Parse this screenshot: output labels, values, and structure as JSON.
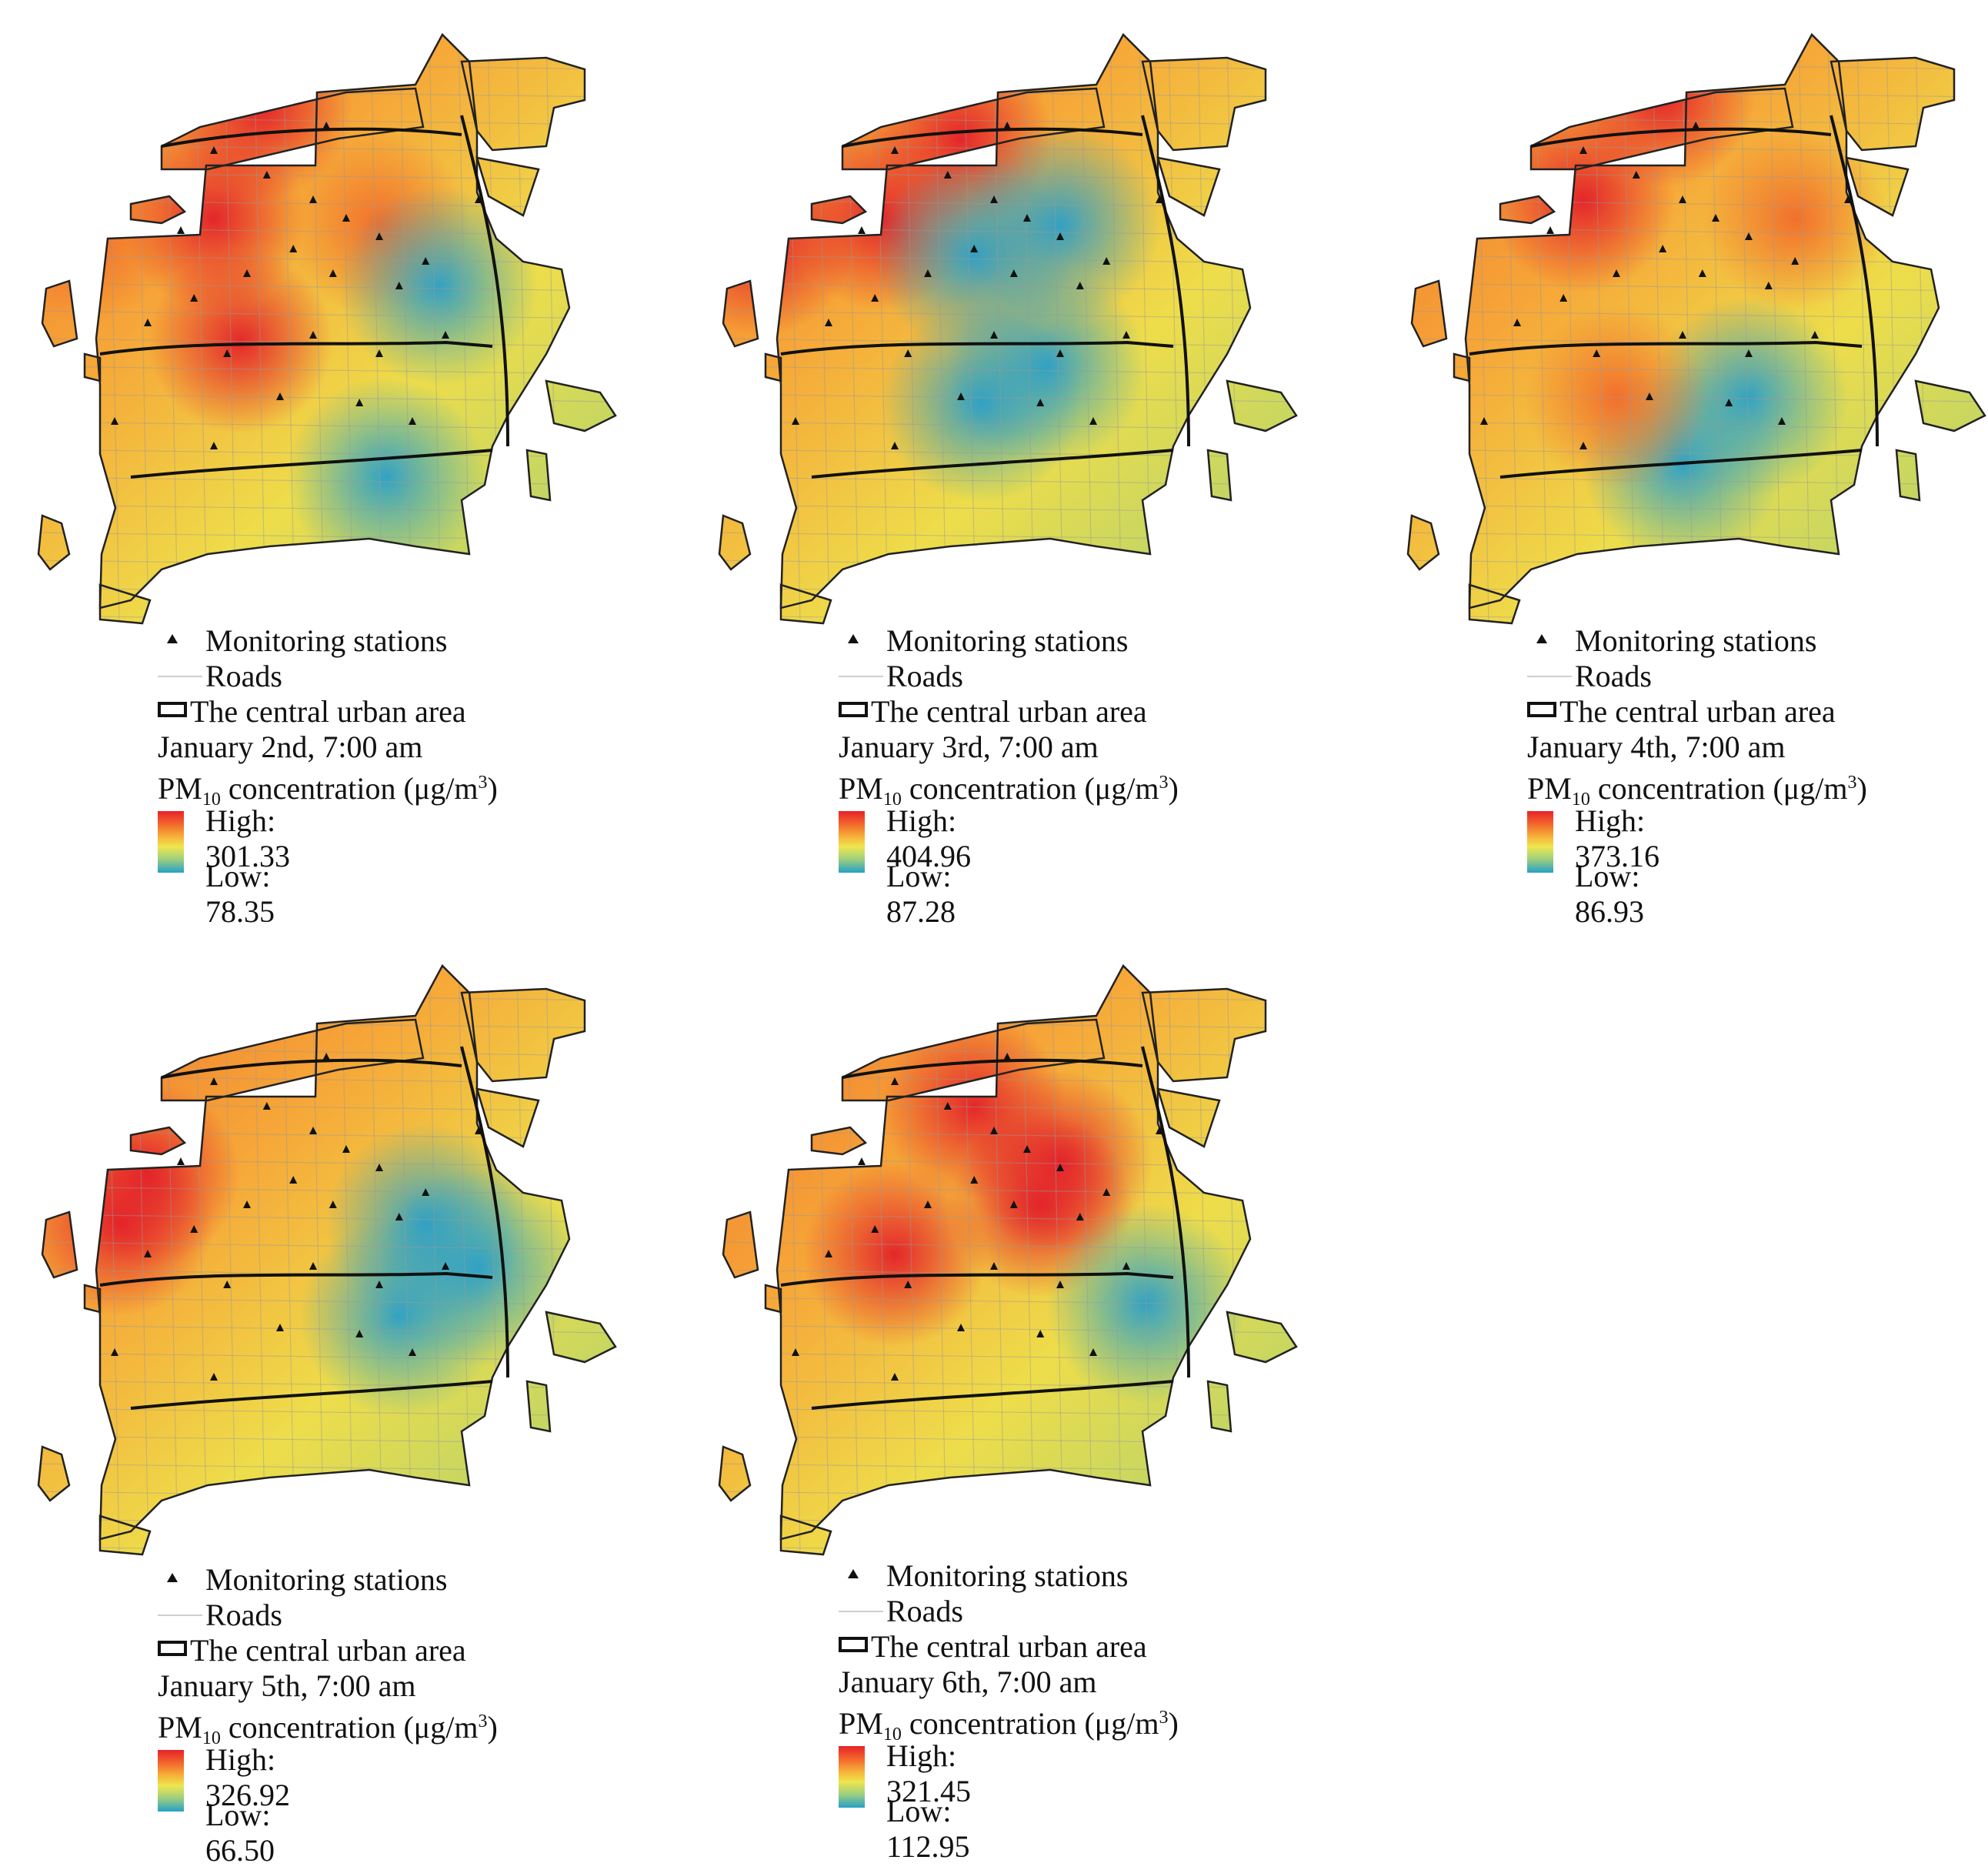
{
  "legend_common": {
    "stations": "Monitoring stations",
    "roads": "Roads",
    "area": "The central urban area",
    "pm_prefix": "PM",
    "pm_sub": "10",
    "pm_suffix": " concentration (μg/m",
    "pm_sup": "3",
    "pm_close": ")"
  },
  "panels": [
    {
      "date": "January 2nd, 7:00 am",
      "high": "High: 301.33",
      "low": "Low: 78.35",
      "hotspots": [
        [
          "red",
          0.3,
          0.33
        ],
        [
          "red",
          0.37,
          0.15
        ],
        [
          "orange",
          0.55,
          0.34
        ],
        [
          "red",
          0.34,
          0.53
        ],
        [
          "blue",
          0.64,
          0.44
        ],
        [
          "blue",
          0.56,
          0.75
        ],
        [
          "orange",
          0.1,
          0.35
        ]
      ]
    },
    {
      "date": "January 3rd, 7:00 am",
      "high": "High: 404.96",
      "low": "Low: 87.28",
      "hotspots": [
        [
          "red",
          0.28,
          0.33
        ],
        [
          "red",
          0.4,
          0.2
        ],
        [
          "blue",
          0.55,
          0.34
        ],
        [
          "blue",
          0.42,
          0.39
        ],
        [
          "blue",
          0.53,
          0.57
        ],
        [
          "blue",
          0.43,
          0.63
        ],
        [
          "red",
          0.1,
          0.37
        ]
      ]
    },
    {
      "date": "January 4th, 7:00 am",
      "high": "High: 373.16",
      "low": "Low: 86.93",
      "hotspots": [
        [
          "red",
          0.3,
          0.3
        ],
        [
          "red",
          0.42,
          0.13
        ],
        [
          "orange",
          0.62,
          0.33
        ],
        [
          "blue",
          0.55,
          0.62
        ],
        [
          "blue",
          0.45,
          0.73
        ],
        [
          "orange",
          0.35,
          0.62
        ]
      ]
    }
  ],
  "panels_row2": [
    {
      "date": "January 5th, 7:00 am",
      "high": "High: 326.92",
      "low": "Low: 66.50",
      "hotspots": [
        [
          "red",
          0.2,
          0.37
        ],
        [
          "red",
          0.16,
          0.45
        ],
        [
          "blue",
          0.62,
          0.45
        ],
        [
          "blue",
          0.7,
          0.52
        ],
        [
          "blue",
          0.58,
          0.6
        ]
      ]
    },
    {
      "date": "January 6th, 7:00 am",
      "high": "High: 321.45",
      "low": "Low: 112.95",
      "hotspots": [
        [
          "red",
          0.52,
          0.42
        ],
        [
          "red",
          0.55,
          0.35
        ],
        [
          "red",
          0.42,
          0.26
        ],
        [
          "blue",
          0.68,
          0.58
        ],
        [
          "red",
          0.3,
          0.5
        ]
      ]
    }
  ]
}
